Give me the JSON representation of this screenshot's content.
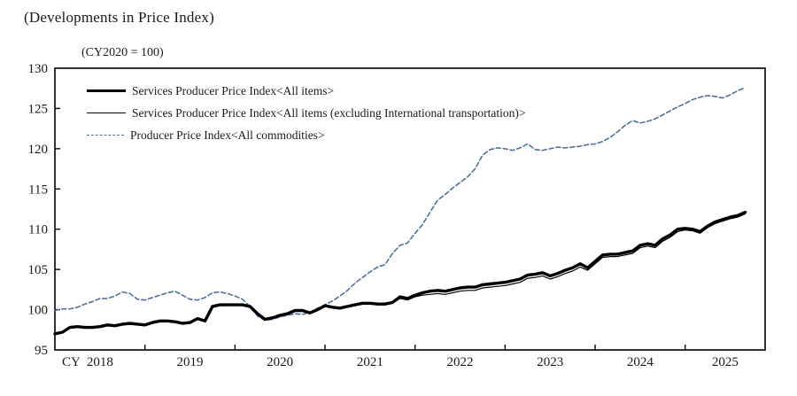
{
  "page": {
    "title": "(Developments in Price Index)",
    "axis_note": "(CY2020 = 100)"
  },
  "chart_data": {
    "type": "line",
    "title": "(Developments in Price Index)",
    "unit_note": "(CY2020 = 100)",
    "grid": false,
    "legend_position": "top-left-inside",
    "x_axis": {
      "prefix": "CY",
      "years": [
        2018,
        2019,
        2020,
        2021,
        2022,
        2023,
        2024,
        2025
      ],
      "frequency": "monthly",
      "start": "2018-01",
      "end": "2025-09"
    },
    "y_axis": {
      "ylim": [
        95,
        130
      ],
      "ticks": [
        95,
        100,
        105,
        110,
        115,
        120,
        125,
        130
      ]
    },
    "series": [
      {
        "id": "sppi-all-items",
        "name": "Services Producer Price Index<All items>",
        "style": "solid-thick",
        "color": "#000000",
        "values": [
          97.0,
          97.2,
          97.8,
          97.9,
          97.8,
          97.8,
          97.9,
          98.1,
          98.0,
          98.2,
          98.3,
          98.2,
          98.1,
          98.4,
          98.6,
          98.6,
          98.5,
          98.3,
          98.4,
          98.9,
          98.6,
          100.4,
          100.6,
          100.6,
          100.6,
          100.6,
          100.4,
          99.5,
          98.8,
          99.0,
          99.3,
          99.5,
          99.9,
          99.9,
          99.6,
          100.0,
          100.5,
          100.3,
          100.2,
          100.4,
          100.6,
          100.8,
          100.8,
          100.7,
          100.7,
          100.9,
          101.6,
          101.4,
          101.8,
          102.1,
          102.3,
          102.4,
          102.3,
          102.5,
          102.7,
          102.8,
          102.8,
          103.1,
          103.2,
          103.3,
          103.4,
          103.6,
          103.8,
          104.3,
          104.4,
          104.6,
          104.2,
          104.5,
          104.9,
          105.2,
          105.7,
          105.2,
          106.0,
          106.8,
          106.9,
          106.9,
          107.1,
          107.3,
          108.0,
          108.2,
          108.0,
          108.8,
          109.3,
          110.0,
          110.1,
          110.0,
          109.7,
          110.4,
          110.9,
          111.2,
          111.5,
          111.7,
          112.1
        ]
      },
      {
        "id": "sppi-excl-intl-transport",
        "name": "Services Producer Price Index<All items (excluding International transportation)>",
        "style": "solid-thin",
        "color": "#000000",
        "values": [
          97.0,
          97.2,
          97.8,
          97.9,
          97.8,
          97.8,
          97.9,
          98.1,
          98.0,
          98.2,
          98.3,
          98.2,
          98.1,
          98.4,
          98.6,
          98.6,
          98.5,
          98.3,
          98.4,
          98.9,
          98.6,
          100.4,
          100.6,
          100.6,
          100.6,
          100.6,
          100.4,
          99.5,
          98.8,
          99.0,
          99.3,
          99.5,
          99.9,
          99.9,
          99.6,
          100.0,
          100.5,
          100.3,
          100.2,
          100.4,
          100.6,
          100.7,
          100.7,
          100.6,
          100.6,
          100.8,
          101.4,
          101.2,
          101.6,
          101.8,
          101.9,
          102.0,
          101.9,
          102.1,
          102.3,
          102.4,
          102.4,
          102.7,
          102.8,
          102.9,
          103.0,
          103.2,
          103.4,
          103.9,
          104.0,
          104.2,
          103.8,
          104.1,
          104.5,
          104.8,
          105.3,
          104.9,
          105.7,
          106.5,
          106.6,
          106.6,
          106.8,
          107.0,
          107.7,
          107.9,
          107.7,
          108.5,
          109.0,
          109.7,
          109.9,
          109.8,
          109.5,
          110.2,
          110.7,
          111.0,
          111.3,
          111.5,
          111.9
        ]
      },
      {
        "id": "ppi-all-commodities",
        "name": "Producer Price Index<All commodities>",
        "style": "dashed",
        "color": "#51709e",
        "values": [
          99.9,
          100.1,
          100.1,
          100.3,
          100.7,
          101.0,
          101.4,
          101.4,
          101.7,
          102.2,
          102.0,
          101.3,
          101.2,
          101.5,
          101.8,
          102.1,
          102.3,
          101.8,
          101.3,
          101.2,
          101.5,
          102.1,
          102.2,
          102.0,
          101.7,
          101.3,
          100.4,
          99.2,
          98.7,
          98.8,
          99.1,
          99.3,
          99.5,
          99.4,
          99.7,
          100.2,
          100.6,
          101.1,
          101.7,
          102.4,
          103.3,
          104.0,
          104.7,
          105.3,
          105.6,
          107.0,
          108.0,
          108.3,
          109.5,
          110.6,
          112.1,
          113.6,
          114.3,
          115.1,
          115.8,
          116.5,
          117.5,
          119.2,
          119.9,
          120.1,
          120.0,
          119.8,
          120.1,
          120.6,
          119.9,
          119.8,
          120.0,
          120.2,
          120.1,
          120.2,
          120.3,
          120.5,
          120.6,
          120.9,
          121.4,
          122.1,
          122.9,
          123.5,
          123.2,
          123.4,
          123.7,
          124.2,
          124.7,
          125.2,
          125.6,
          126.1,
          126.4,
          126.6,
          126.5,
          126.3,
          126.7,
          127.2,
          127.6
        ]
      }
    ]
  }
}
